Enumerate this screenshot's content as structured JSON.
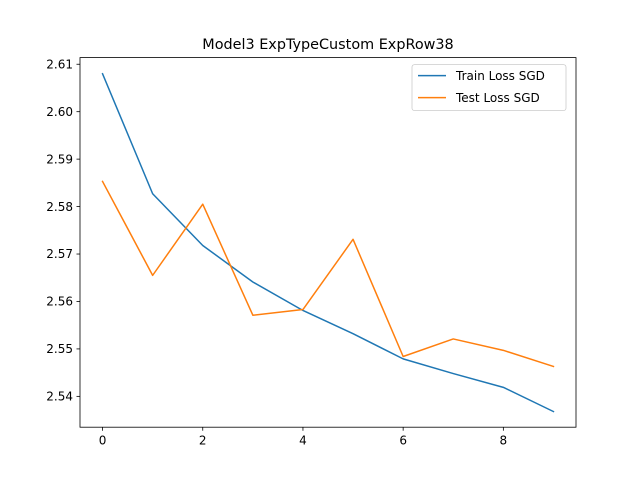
{
  "chart_data": {
    "type": "line",
    "title": "Model3 ExpTypeCustom ExpRow38",
    "xlabel": "",
    "ylabel": "",
    "x": [
      0,
      1,
      2,
      3,
      4,
      5,
      6,
      7,
      8,
      9
    ],
    "xlim": [
      -0.45,
      9.45
    ],
    "ylim": [
      2.5335,
      2.6114
    ],
    "xticks": [
      0,
      2,
      4,
      6,
      8
    ],
    "yticks": [
      2.54,
      2.55,
      2.56,
      2.57,
      2.58,
      2.59,
      2.6,
      2.61
    ],
    "xtick_labels": [
      "0",
      "2",
      "4",
      "6",
      "8"
    ],
    "ytick_labels": [
      "2.54",
      "2.55",
      "2.56",
      "2.57",
      "2.58",
      "2.59",
      "2.60",
      "2.61"
    ],
    "grid": false,
    "legend_position": "top-right",
    "series": [
      {
        "name": "Train Loss SGD",
        "color": "#1f77b4",
        "values": [
          2.608,
          2.5827,
          2.5718,
          2.5641,
          2.5581,
          2.5532,
          2.5479,
          2.5448,
          2.5419,
          2.5368
        ]
      },
      {
        "name": "Test Loss SGD",
        "color": "#ff7f0e",
        "values": [
          2.5853,
          2.5655,
          2.5805,
          2.5571,
          2.5583,
          2.5731,
          2.5484,
          2.5521,
          2.5497,
          2.5463
        ]
      }
    ]
  }
}
